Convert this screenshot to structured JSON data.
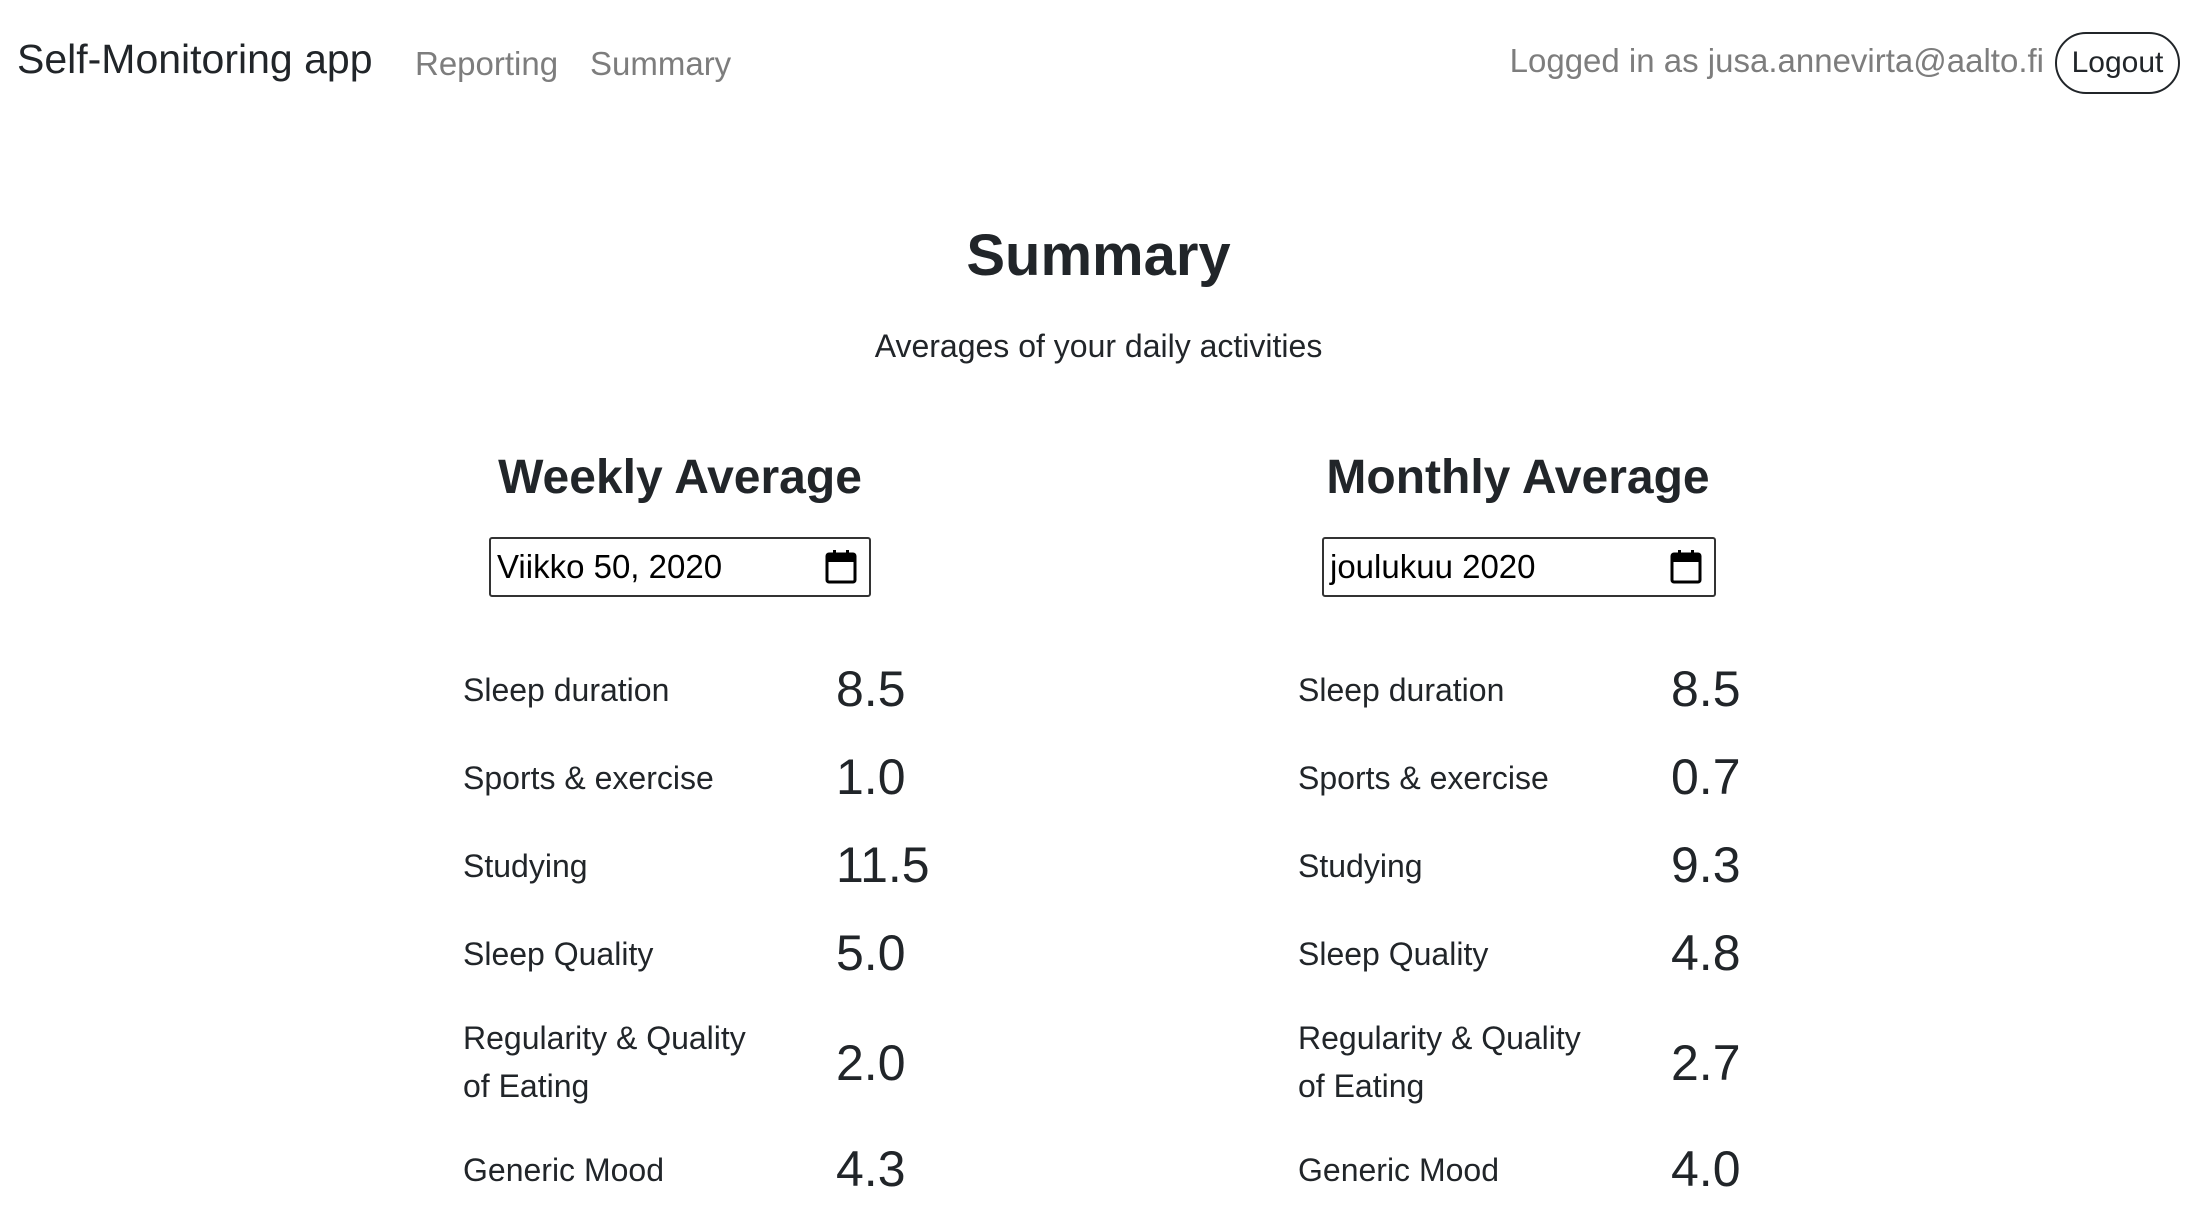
{
  "nav": {
    "brand": "Self-Monitoring app",
    "links": [
      "Reporting",
      "Summary"
    ],
    "login_text": "Logged in as jusa.annevirta@aalto.fi",
    "logout_label": "Logout"
  },
  "page": {
    "title": "Summary",
    "subtitle": "Averages of your daily activities"
  },
  "weekly": {
    "heading": "Weekly Average",
    "date_value": "Viikko 50, 2020",
    "metrics": [
      {
        "label": "Sleep duration",
        "value": "8.5"
      },
      {
        "label": "Sports & exercise",
        "value": "1.0"
      },
      {
        "label": "Studying",
        "value": "11.5"
      },
      {
        "label": "Sleep Quality",
        "value": "5.0"
      },
      {
        "label_line1": "Regularity & Quality",
        "label_line2": "of Eating",
        "value": "2.0"
      },
      {
        "label": "Generic Mood",
        "value": "4.3"
      }
    ]
  },
  "monthly": {
    "heading": "Monthly Average",
    "date_value": "joulukuu 2020",
    "metrics": [
      {
        "label": "Sleep duration",
        "value": "8.5"
      },
      {
        "label": "Sports & exercise",
        "value": "0.7"
      },
      {
        "label": "Studying",
        "value": "9.3"
      },
      {
        "label": "Sleep Quality",
        "value": "4.8"
      },
      {
        "label_line1": "Regularity & Quality",
        "label_line2": "of Eating",
        "value": "2.7"
      },
      {
        "label": "Generic Mood",
        "value": "4.0"
      }
    ]
  },
  "icons": {
    "calendar": "calendar-icon"
  }
}
